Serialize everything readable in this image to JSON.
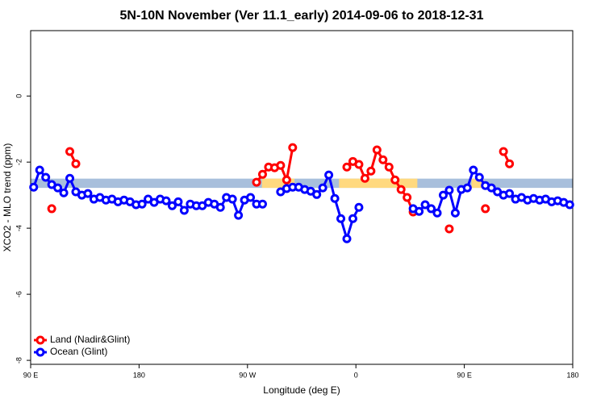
{
  "chart_data": {
    "type": "line",
    "title": "5N-10N November (Ver 11.1_early)   2014-09-06 to 2018-12-31",
    "x_label": "Longitude (deg E)",
    "y_label": "XCO2 - MLO trend (ppm)",
    "xlim": [
      90,
      540
    ],
    "xticks": [
      {
        "value": 90,
        "label": "90 E"
      },
      {
        "value": 180,
        "label": "180"
      },
      {
        "value": 270,
        "label": "90 W"
      },
      {
        "value": 360,
        "label": "0"
      },
      {
        "value": 450,
        "label": "90 E"
      },
      {
        "value": 540,
        "label": "180"
      }
    ],
    "ylim": [
      -8.12,
      1.98
    ],
    "yticks": [
      0,
      -2,
      -4,
      -6,
      -8
    ],
    "legend": "bottomleft",
    "background_band": {
      "low": -2.78,
      "high": -2.5,
      "color": "#a8bfdc"
    },
    "land_color": "#ffd97f",
    "land_spans": [
      {
        "from": 282,
        "to": 309
      },
      {
        "from": 346,
        "to": 411
      },
      {
        "from": 456,
        "to": 466
      }
    ],
    "x": [
      92.5,
      97.5,
      102.5,
      107.5,
      112.5,
      117.5,
      122.5,
      127.5,
      132.5,
      137.5,
      142.5,
      147.5,
      152.5,
      157.5,
      162.5,
      167.5,
      172.5,
      177.5,
      182.5,
      187.5,
      192.5,
      197.5,
      202.5,
      207.5,
      212.5,
      217.5,
      222.5,
      227.5,
      232.5,
      237.5,
      242.5,
      247.5,
      252.5,
      257.5,
      262.5,
      267.5,
      272.5,
      277.5,
      282.5,
      287.5,
      292.5,
      297.5,
      302.5,
      307.5,
      312.5,
      317.5,
      322.5,
      327.5,
      332.5,
      337.5,
      342.5,
      347.5,
      352.5,
      357.5,
      362.5,
      367.5,
      372.5,
      377.5,
      382.5,
      387.5,
      392.5,
      397.5,
      402.5,
      407.5,
      412.5,
      417.5,
      422.5,
      427.5,
      432.5,
      437.5,
      442.5,
      447.5,
      452.5,
      457.5,
      462.5,
      467.5,
      472.5,
      477.5,
      482.5,
      487.5,
      492.5,
      497.5,
      502.5,
      507.5,
      512.5,
      517.5,
      522.5,
      527.5,
      532.5,
      537.5
    ],
    "series": [
      {
        "name": "Land (Nadir&Glint)",
        "color": "#ff0000",
        "values": [
          null,
          null,
          null,
          -3.41,
          null,
          null,
          -1.68,
          -2.05,
          null,
          null,
          null,
          null,
          null,
          null,
          null,
          null,
          null,
          null,
          null,
          null,
          null,
          null,
          null,
          null,
          null,
          null,
          null,
          null,
          null,
          null,
          null,
          null,
          null,
          null,
          null,
          null,
          null,
          -2.61,
          -2.37,
          -2.15,
          -2.17,
          -2.1,
          -2.54,
          -1.56,
          null,
          null,
          null,
          null,
          null,
          null,
          null,
          null,
          -2.15,
          -1.98,
          -2.07,
          -2.49,
          -2.27,
          -1.63,
          -1.93,
          -2.15,
          -2.54,
          -2.83,
          -3.07,
          -3.51,
          null,
          null,
          null,
          null,
          null,
          -4.02,
          null,
          null,
          null,
          null,
          null,
          -3.41,
          null,
          null,
          -1.68,
          -2.05,
          null,
          null,
          null,
          null,
          null,
          null,
          null,
          null,
          null,
          null
        ]
      },
      {
        "name": "Ocean (Glint)",
        "color": "#0000ff",
        "values": [
          -2.76,
          -2.24,
          -2.46,
          -2.68,
          -2.78,
          -2.93,
          -2.49,
          -2.9,
          -3.0,
          -2.95,
          -3.12,
          -3.07,
          -3.15,
          -3.12,
          -3.2,
          -3.15,
          -3.2,
          -3.29,
          -3.27,
          -3.12,
          -3.22,
          -3.12,
          -3.17,
          -3.32,
          -3.2,
          -3.46,
          -3.27,
          -3.32,
          -3.32,
          -3.22,
          -3.27,
          -3.37,
          -3.07,
          -3.12,
          -3.61,
          -3.15,
          -3.07,
          -3.27,
          -3.27,
          null,
          null,
          -2.9,
          -2.8,
          -2.76,
          -2.76,
          -2.83,
          -2.88,
          -2.98,
          -2.78,
          -2.39,
          -3.1,
          -3.71,
          -4.32,
          -3.71,
          -3.37,
          null,
          null,
          null,
          null,
          null,
          null,
          null,
          null,
          -3.41,
          -3.49,
          -3.29,
          -3.41,
          -3.54,
          -3.0,
          -2.85,
          -3.54,
          -2.83,
          -2.78,
          -2.24,
          -2.46,
          -2.71,
          -2.78,
          -2.9,
          -3.0,
          -2.95,
          -3.12,
          -3.07,
          -3.15,
          -3.1,
          -3.15,
          -3.12,
          -3.2,
          -3.17,
          -3.22,
          -3.29
        ]
      }
    ]
  }
}
